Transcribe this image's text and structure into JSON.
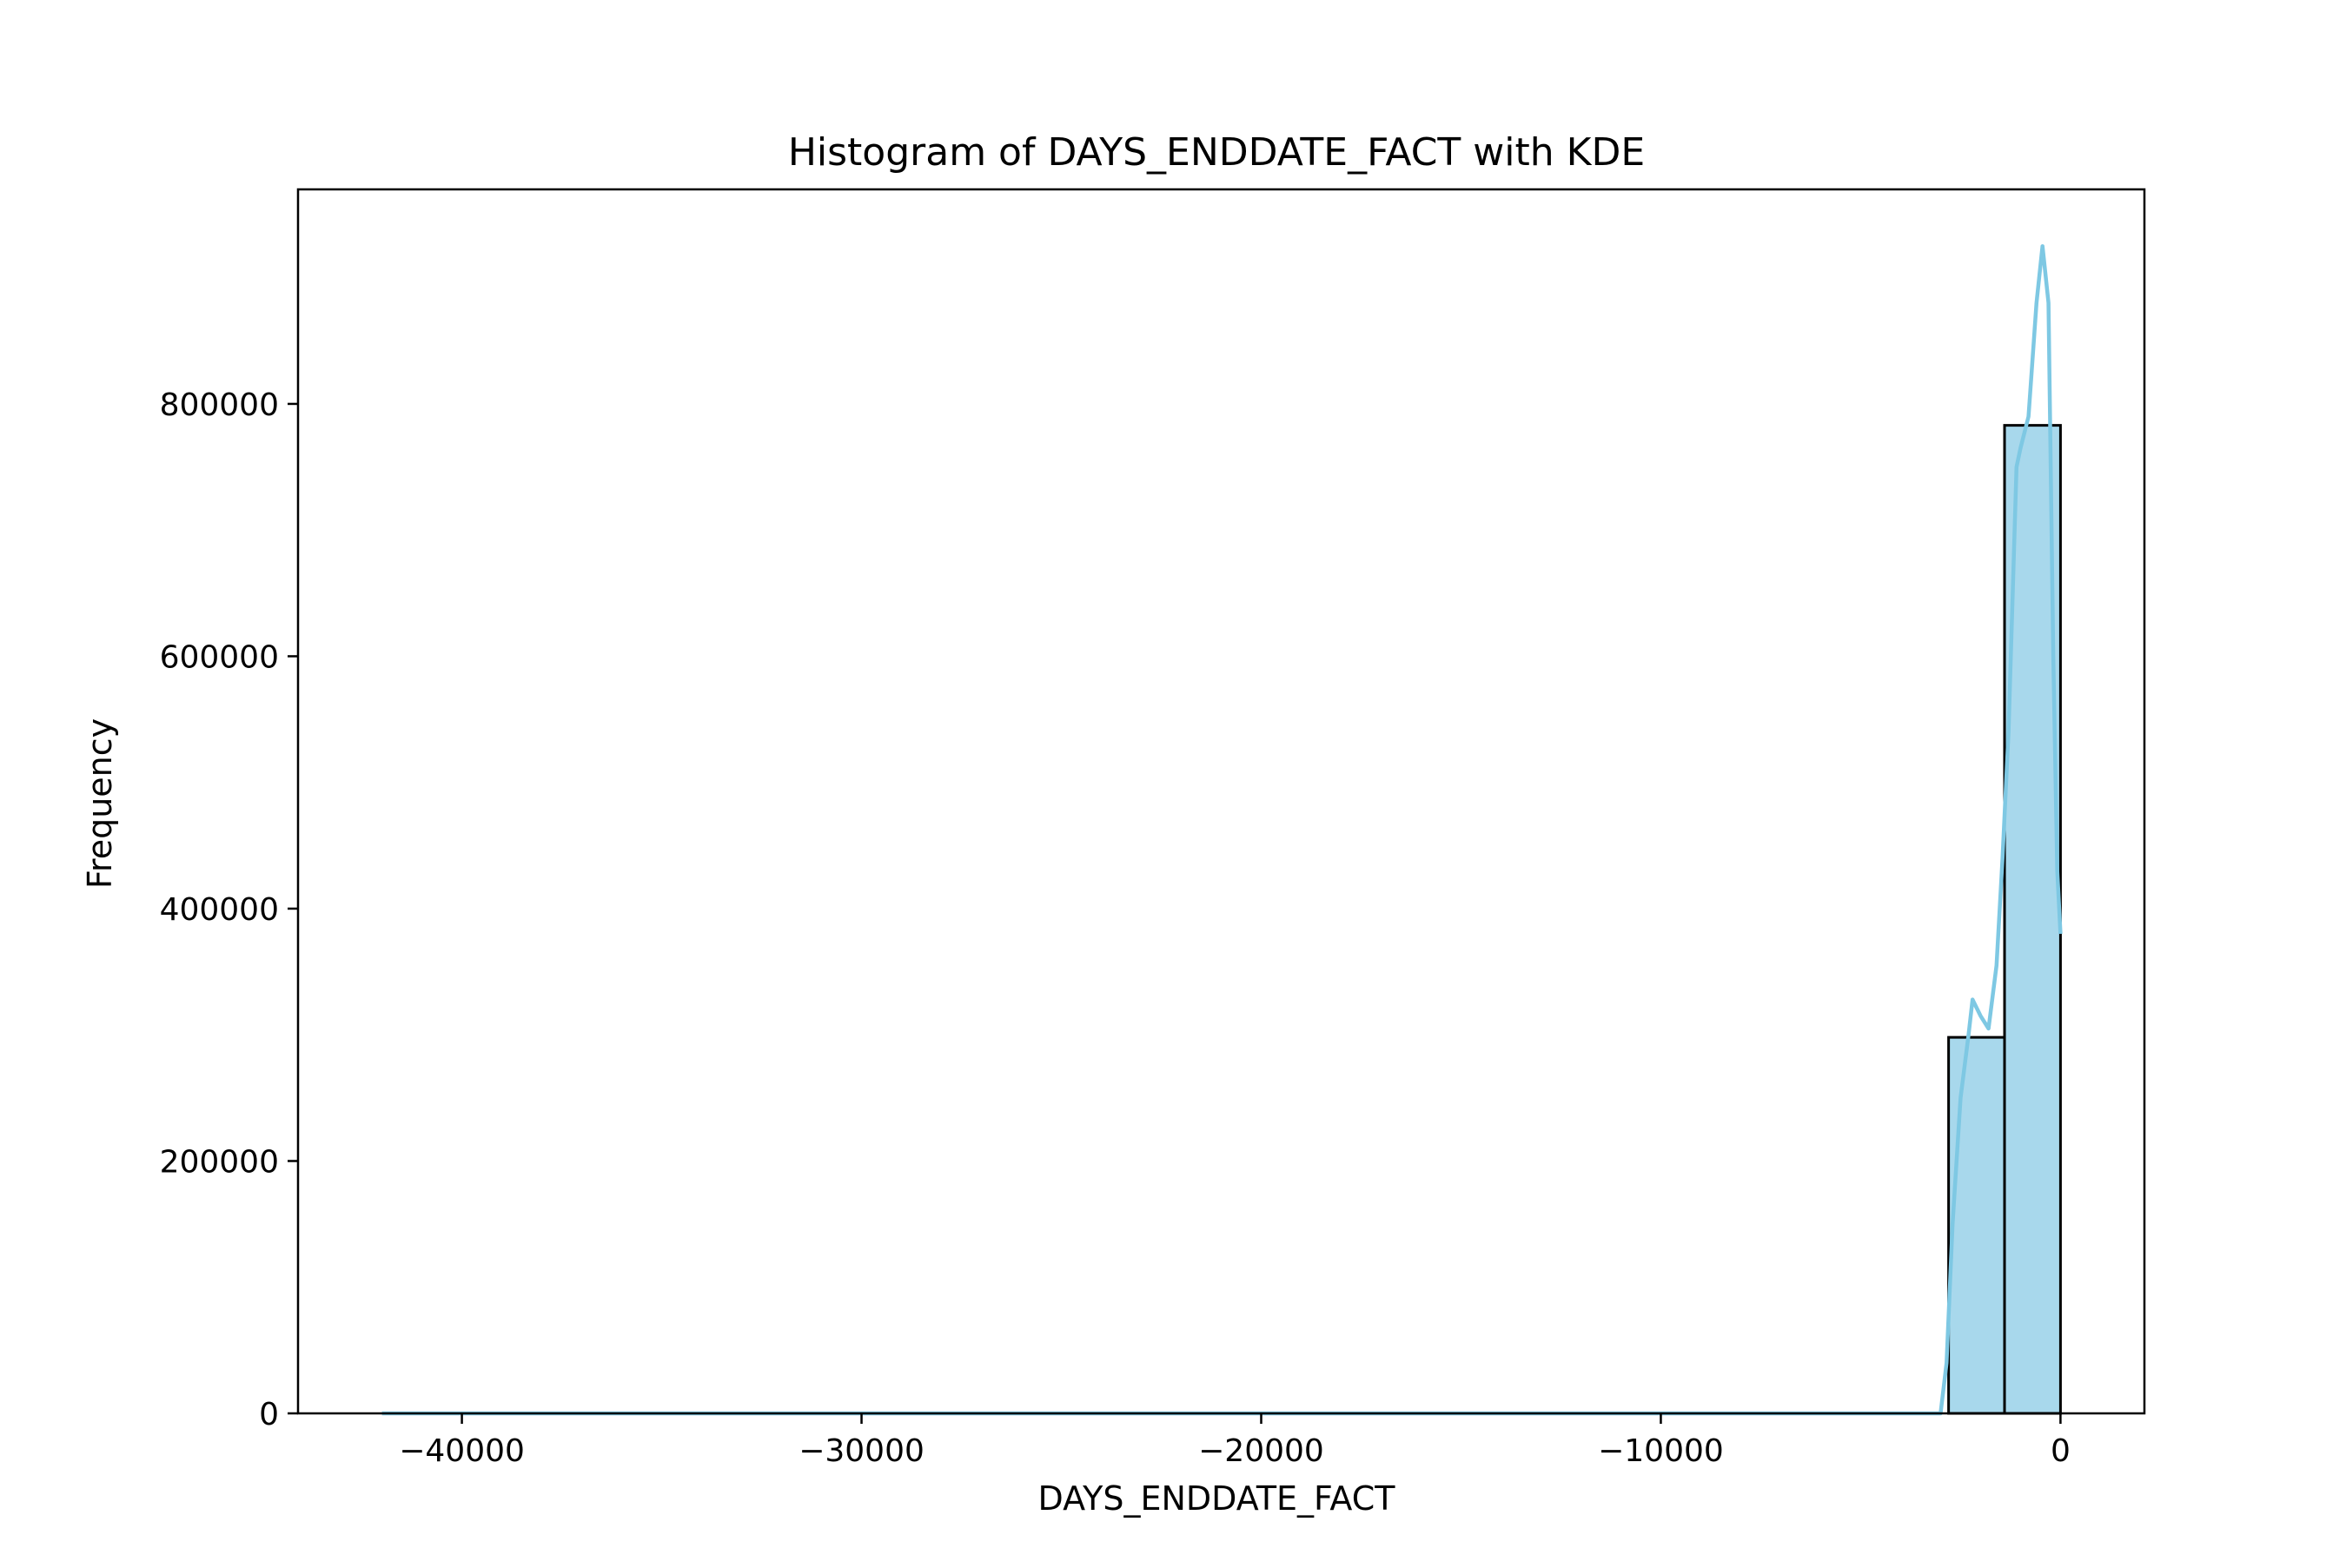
{
  "chart_data": {
    "type": "bar",
    "title": "Histogram of DAYS_ENDDATE_FACT with KDE",
    "xlabel": "DAYS_ENDDATE_FACT",
    "ylabel": "Frequency",
    "xlim": [
      -44100,
      2100
    ],
    "ylim": [
      0,
      970000
    ],
    "x_ticks": [
      -40000,
      -30000,
      -20000,
      -10000,
      0
    ],
    "x_tick_labels": [
      "−40000",
      "−30000",
      "−20000",
      "−10000",
      "0"
    ],
    "y_ticks": [
      0,
      200000,
      400000,
      600000,
      800000
    ],
    "y_tick_labels": [
      "0",
      "200000",
      "400000",
      "600000",
      "800000"
    ],
    "grid": false,
    "colors": {
      "bar_fill": "#a8d8ec",
      "bar_edge": "#000000",
      "kde_line": "#7ec8e3"
    },
    "bins": [
      {
        "x0": -2800,
        "x1": -1400,
        "count": 298000
      },
      {
        "x0": -1400,
        "x1": 0,
        "count": 783000
      }
    ],
    "kde": {
      "x": [
        -42000,
        -30000,
        -20000,
        -10000,
        -4000,
        -3000,
        -2850,
        -2700,
        -2500,
        -2300,
        -2200,
        -2000,
        -1800,
        -1600,
        -1450,
        -1300,
        -1100,
        -1000,
        -800,
        -600,
        -450,
        -300,
        -180,
        -80,
        0
      ],
      "y": [
        0,
        0,
        0,
        0,
        0,
        0,
        40000,
        150000,
        250000,
        300000,
        328000,
        315000,
        305000,
        355000,
        440000,
        540000,
        750000,
        765000,
        790000,
        880000,
        925000,
        880000,
        600000,
        430000,
        380000
      ]
    }
  }
}
